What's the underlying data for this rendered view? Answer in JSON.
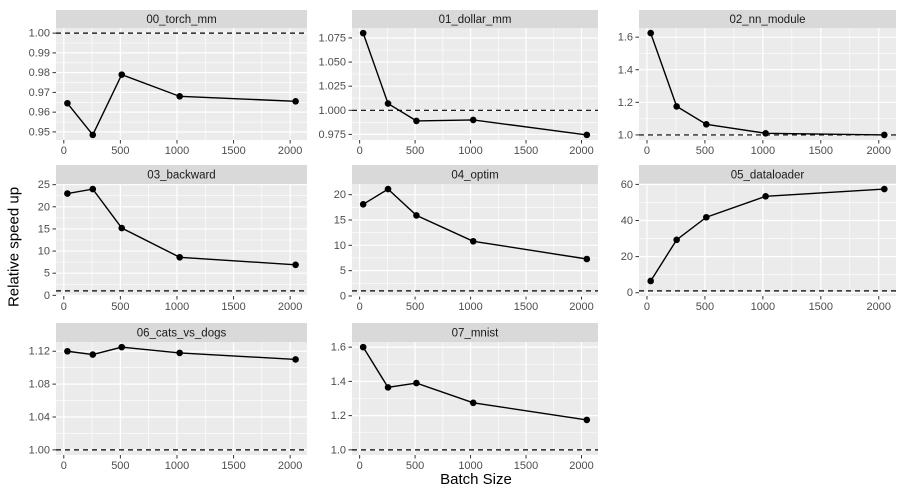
{
  "figure": {
    "xlabel": "Batch Size",
    "ylabel": "Relative speed up",
    "xlim": [
      -68.8,
      2148.8
    ],
    "xticks": [
      0,
      500,
      1000,
      1500,
      2000
    ],
    "xtick_labels": [
      "0",
      "500",
      "1000",
      "1500",
      "2000"
    ],
    "baseline": 1,
    "grid": "major+minor white on gray panels",
    "legend": "none",
    "colors": {
      "panel_bg": "#ebebeb",
      "strip_bg": "#d9d9d9",
      "grid": "#ffffff",
      "series": "#000000",
      "point": "#000000",
      "baseline": "#000000",
      "tick_text": "#4d4d4d",
      "tick_mark": "#333333",
      "strip_text": "#1a1a1a",
      "axis_title_text": "#000000"
    }
  },
  "chart_data": [
    {
      "type": "line",
      "title": "00_torch_mm",
      "x": [
        32,
        256,
        512,
        1024,
        2048
      ],
      "values": [
        0.9645,
        0.9485,
        0.979,
        0.968,
        0.9655
      ],
      "ylim": [
        0.9459,
        1.0026
      ],
      "yticks": [
        0.95,
        0.96,
        0.97,
        0.98,
        0.99,
        1.0
      ],
      "ytick_labels": [
        "0.95",
        "0.96",
        "0.97",
        "0.98",
        "0.99",
        "1.00"
      ],
      "baseline": 1
    },
    {
      "type": "line",
      "title": "01_dollar_mm",
      "x": [
        32,
        256,
        512,
        1024,
        2048
      ],
      "values": [
        1.08,
        1.007,
        0.989,
        0.99,
        0.9745
      ],
      "ylim": [
        0.9692,
        1.0853
      ],
      "yticks": [
        0.975,
        1.0,
        1.025,
        1.05,
        1.075
      ],
      "ytick_labels": [
        "0.975",
        "1.000",
        "1.025",
        "1.050",
        "1.075"
      ],
      "baseline": 1
    },
    {
      "type": "line",
      "title": "02_nn_module",
      "x": [
        32,
        256,
        512,
        1024,
        2048
      ],
      "values": [
        1.625,
        1.175,
        1.065,
        1.01,
        1.0
      ],
      "ylim": [
        0.9688,
        1.6563
      ],
      "yticks": [
        1.0,
        1.2,
        1.4,
        1.6
      ],
      "ytick_labels": [
        "1.0",
        "1.2",
        "1.4",
        "1.6"
      ],
      "baseline": 1
    },
    {
      "type": "line",
      "title": "03_backward",
      "x": [
        32,
        256,
        512,
        1024,
        2048
      ],
      "values": [
        23.0,
        24.0,
        15.2,
        8.6,
        6.9
      ],
      "ylim": [
        -0.15,
        25.15
      ],
      "yticks": [
        0,
        5,
        10,
        15,
        20,
        25
      ],
      "ytick_labels": [
        "0",
        "5",
        "10",
        "15",
        "20",
        "25"
      ],
      "baseline": 1
    },
    {
      "type": "line",
      "title": "04_optim",
      "x": [
        32,
        256,
        512,
        1024,
        2048
      ],
      "values": [
        18.1,
        21.1,
        15.9,
        10.8,
        7.3
      ],
      "ylim": [
        -0.005,
        22.105
      ],
      "yticks": [
        0,
        5,
        10,
        15,
        20
      ],
      "ytick_labels": [
        "0",
        "5",
        "10",
        "15",
        "20"
      ],
      "baseline": 1
    },
    {
      "type": "line",
      "title": "05_dataloader",
      "x": [
        32,
        256,
        512,
        1024,
        2048
      ],
      "values": [
        6.5,
        29.3,
        41.8,
        53.4,
        57.4
      ],
      "ylim": [
        -1.82,
        60.22
      ],
      "yticks": [
        0,
        20,
        40,
        60
      ],
      "ytick_labels": [
        "0",
        "20",
        "40",
        "60"
      ],
      "baseline": 1
    },
    {
      "type": "line",
      "title": "06_cats_vs_dogs",
      "x": [
        32,
        256,
        512,
        1024,
        2048
      ],
      "values": [
        1.12,
        1.116,
        1.125,
        1.118,
        1.11
      ],
      "ylim": [
        0.99375,
        1.13125
      ],
      "yticks": [
        1.0,
        1.04,
        1.08,
        1.12
      ],
      "ytick_labels": [
        "1.00",
        "1.04",
        "1.08",
        "1.12"
      ],
      "baseline": 1
    },
    {
      "type": "line",
      "title": "07_mnist",
      "x": [
        32,
        256,
        512,
        1024,
        2048
      ],
      "values": [
        1.6,
        1.365,
        1.39,
        1.275,
        1.175
      ],
      "ylim": [
        0.97,
        1.63
      ],
      "yticks": [
        1.0,
        1.2,
        1.4,
        1.6
      ],
      "ytick_labels": [
        "1.0",
        "1.2",
        "1.4",
        "1.6"
      ],
      "baseline": 1
    }
  ]
}
